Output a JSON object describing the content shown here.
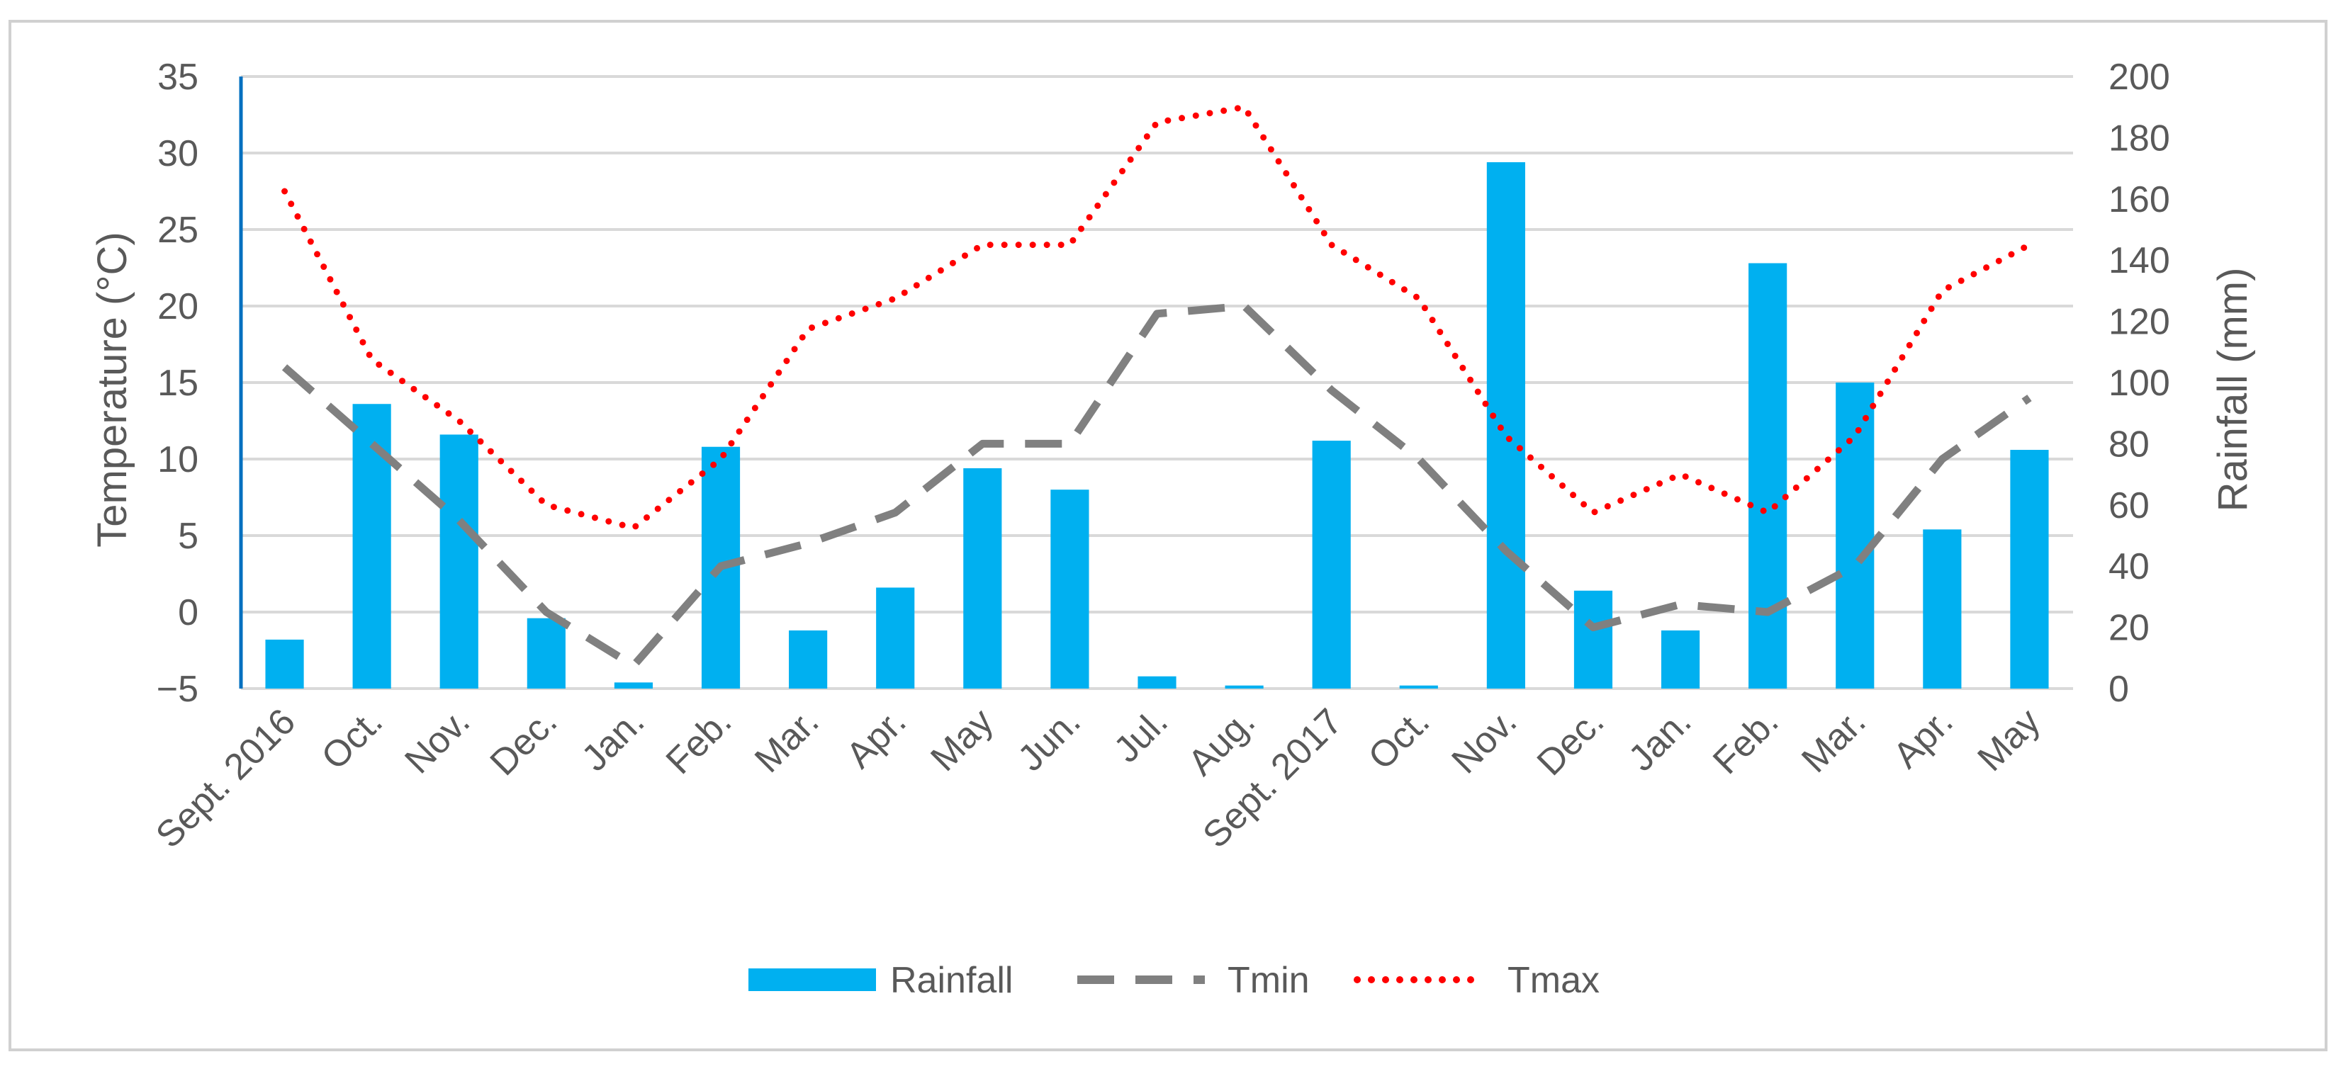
{
  "chart_data": {
    "type": "bar",
    "title": "",
    "categories": [
      "Sept. 2016",
      "Oct.",
      "Nov.",
      "Dec.",
      "Jan.",
      "Feb.",
      "Mar.",
      "Apr.",
      "May",
      "Jun.",
      "Jul.",
      "Aug.",
      "Sept. 2017",
      "Oct.",
      "Nov.",
      "Dec.",
      "Jan.",
      "Feb.",
      "Mar.",
      "Apr.",
      "May"
    ],
    "xlabel": "",
    "y_left": {
      "label": "Temperature (°C)",
      "range": [
        -5,
        35
      ],
      "ticks": [
        -5,
        0,
        5,
        10,
        15,
        20,
        25,
        30,
        35
      ]
    },
    "y_right": {
      "label": "Rainfall (mm)",
      "range": [
        0,
        200
      ],
      "ticks": [
        0,
        20,
        40,
        60,
        80,
        100,
        120,
        140,
        160,
        180,
        200
      ]
    },
    "grid": true,
    "legend_position": "bottom",
    "series": [
      {
        "name": "Rainfall",
        "type": "bar",
        "axis": "right",
        "color": "#00b0f0",
        "values": [
          16,
          93,
          83,
          23,
          2,
          79,
          19,
          33,
          72,
          65,
          4,
          1,
          81,
          1,
          172,
          32,
          19,
          139,
          100,
          52,
          78
        ]
      },
      {
        "name": "Tmin",
        "type": "line",
        "style": "dashed",
        "axis": "left",
        "color": "#808080",
        "values": [
          16,
          11,
          6,
          0,
          -3.5,
          3,
          4.5,
          6.5,
          11,
          11,
          19.5,
          20,
          14.5,
          10,
          4,
          -1,
          0.5,
          0,
          3,
          10,
          14
        ]
      },
      {
        "name": "Tmax",
        "type": "line",
        "style": "dotted",
        "axis": "left",
        "color": "#ff0000",
        "values": [
          27.5,
          16.5,
          12.5,
          7,
          5.5,
          10,
          18.5,
          20.5,
          24,
          24,
          32,
          33,
          24,
          20.5,
          11.5,
          6.5,
          9,
          6.5,
          11.5,
          21,
          24
        ]
      }
    ]
  }
}
